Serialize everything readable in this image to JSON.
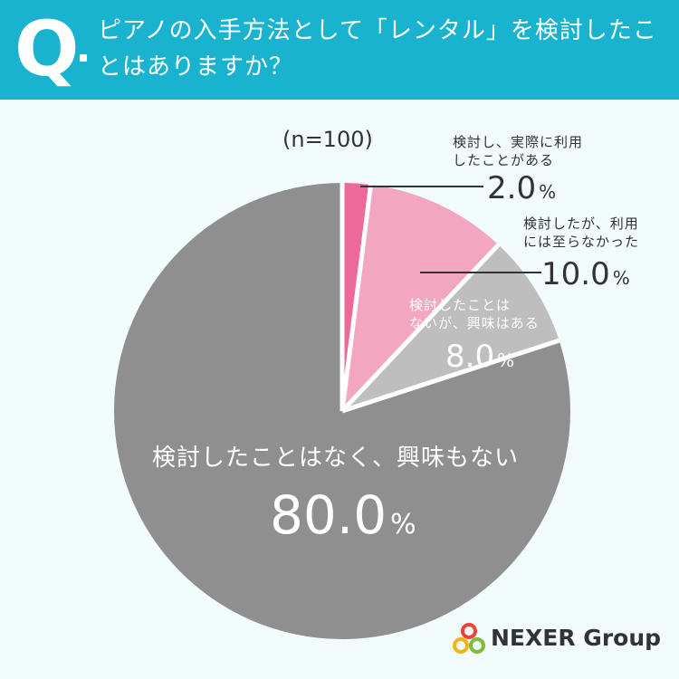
{
  "question": {
    "mark": "Q",
    "text": "ピアノの入手方法として「レンタル」を検討したことはありますか？"
  },
  "sample_size": "(n=100)",
  "percent_sign": "%",
  "brand": {
    "name": "NEXER Group",
    "icon": "nexer-rings-logo"
  },
  "colors": {
    "header": "#1ab3cf",
    "background": "#f2fcfd",
    "accent_dark_pink": "#ec6a99",
    "accent_pink": "#f3a6c0",
    "light_gray": "#bebebe",
    "gray": "#8f8f8f"
  },
  "chart_data": {
    "type": "pie",
    "title": "",
    "start": "12 o'clock",
    "direction": "clockwise",
    "slices": [
      {
        "label": "検討し、実際に利用したことがある",
        "label_lines": [
          "検討し、実際に利用",
          "したことがある"
        ],
        "value": 2.0,
        "value_text": "2.0",
        "color": "#ec6a99"
      },
      {
        "label": "検討したが、利用には至らなかった",
        "label_lines": [
          "検討したが、利用",
          "には至らなかった"
        ],
        "value": 10.0,
        "value_text": "10.0",
        "color": "#f3a6c0"
      },
      {
        "label": "検討したことはないが、興味はある",
        "label_lines": [
          "検討したことは",
          "ないが、興味はある"
        ],
        "value": 8.0,
        "value_text": "8.0",
        "color": "#bebebe"
      },
      {
        "label": "検討したことはなく、興味もない",
        "label_lines": [
          "検討したことはなく、興味もない"
        ],
        "value": 80.0,
        "value_text": "80.0",
        "color": "#8f8f8f"
      }
    ]
  }
}
